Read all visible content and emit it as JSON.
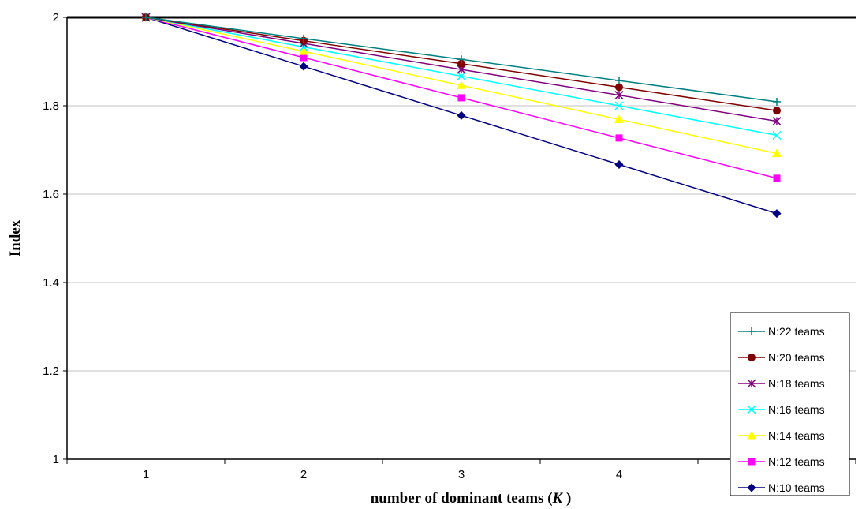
{
  "chart_data": {
    "type": "line",
    "title": "",
    "xlabel": "number of dominant teams (",
    "xlabel_var": "K",
    "xlabel_suffix": " )",
    "ylabel": "Index",
    "x": [
      1,
      2,
      3,
      4,
      5
    ],
    "xlim": [
      0.5,
      5.5
    ],
    "ylim": [
      1,
      2
    ],
    "yticks": [
      1,
      1.2,
      1.4,
      1.6,
      1.8,
      2
    ],
    "grid": "horizontal",
    "legend_position": "right",
    "series": [
      {
        "name": "N:22 teams",
        "values": [
          2.0,
          1.952,
          1.905,
          1.857,
          1.809
        ],
        "color": "#008080",
        "marker": "plus"
      },
      {
        "name": "N:20 teams",
        "values": [
          2.0,
          1.947,
          1.895,
          1.842,
          1.789
        ],
        "color": "#800000",
        "marker": "circle"
      },
      {
        "name": "N:18 teams",
        "values": [
          2.0,
          1.941,
          1.882,
          1.824,
          1.765
        ],
        "color": "#800080",
        "marker": "star"
      },
      {
        "name": "N:16 teams",
        "values": [
          2.0,
          1.933,
          1.867,
          1.8,
          1.733
        ],
        "color": "#00ffff",
        "marker": "x"
      },
      {
        "name": "N:14 teams",
        "values": [
          2.0,
          1.923,
          1.846,
          1.769,
          1.692
        ],
        "color": "#ffff00",
        "marker": "triangle"
      },
      {
        "name": "N:12 teams",
        "values": [
          2.0,
          1.909,
          1.818,
          1.727,
          1.636
        ],
        "color": "#ff00ff",
        "marker": "square"
      },
      {
        "name": "N:10 teams",
        "values": [
          2.0,
          1.889,
          1.778,
          1.667,
          1.556
        ],
        "color": "#000080",
        "marker": "diamond"
      }
    ]
  }
}
